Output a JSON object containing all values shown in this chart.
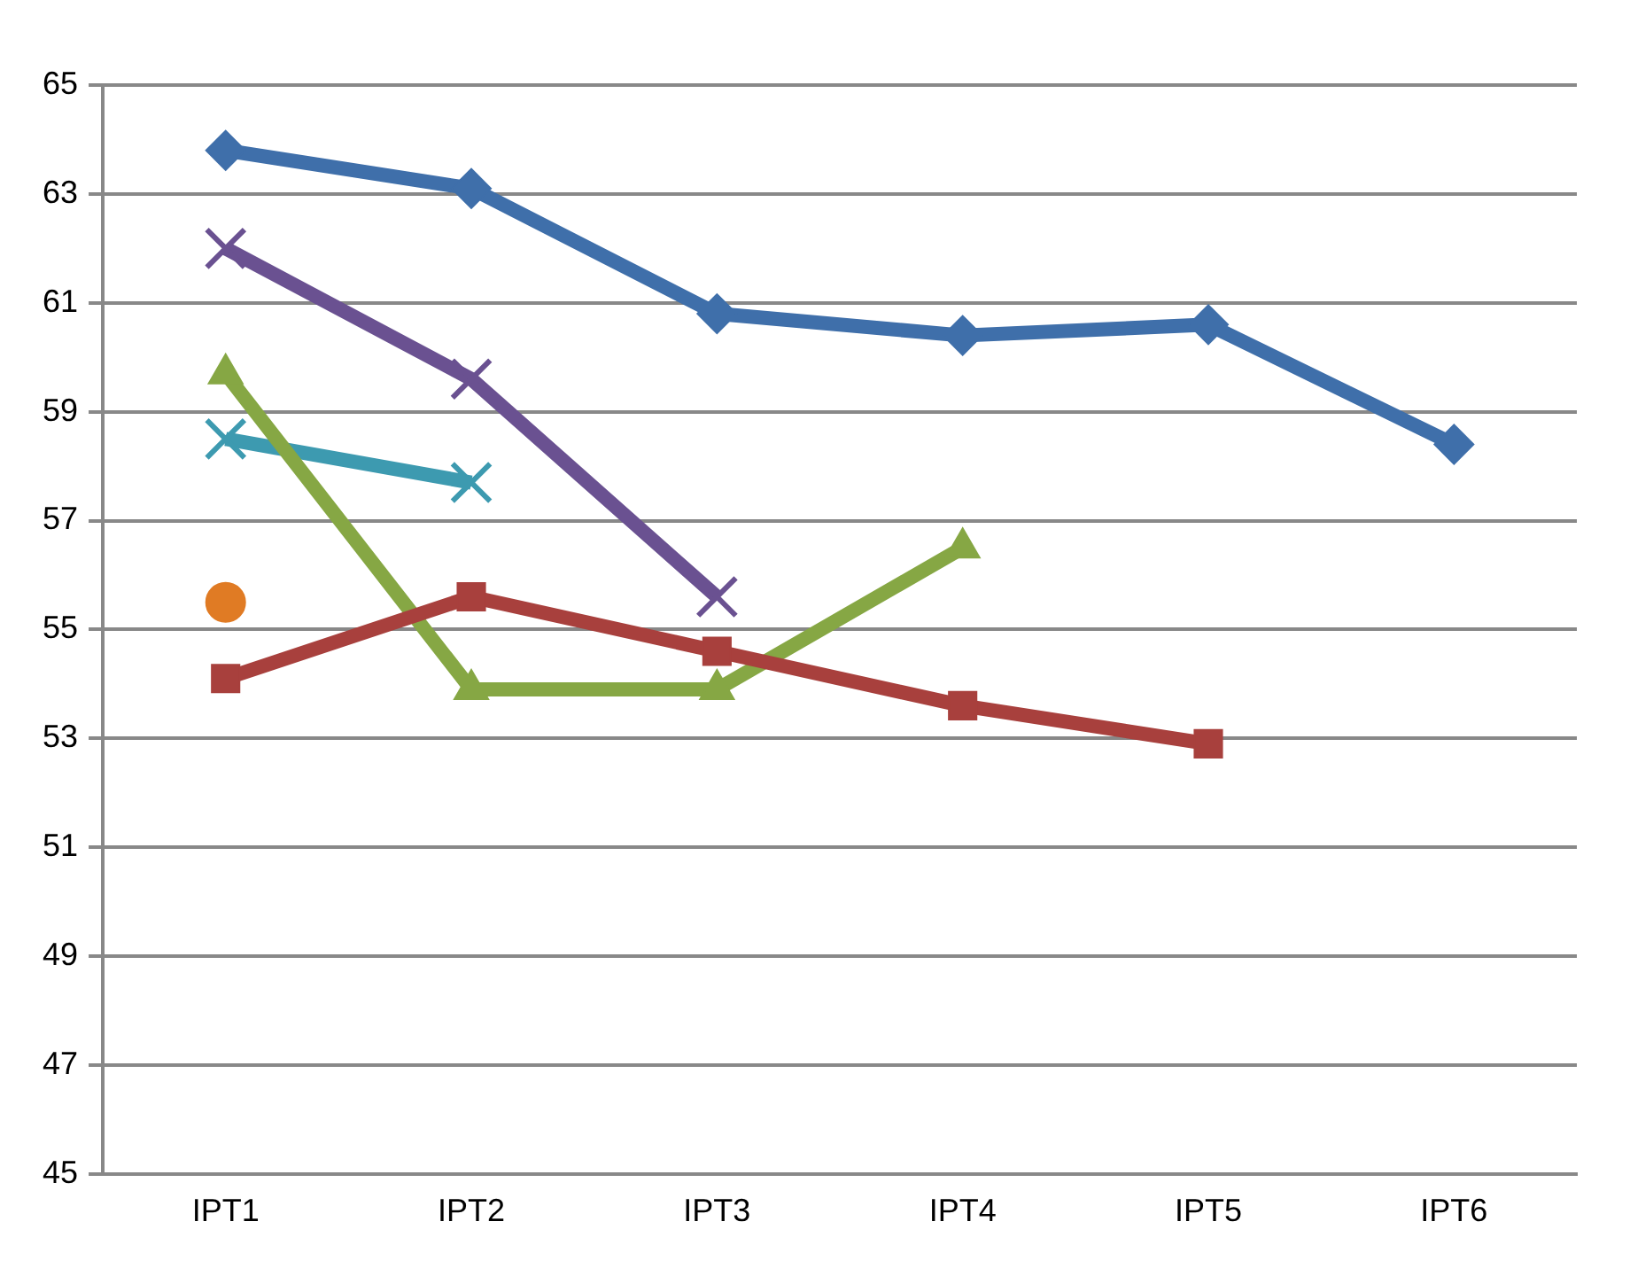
{
  "chart_data": {
    "type": "line",
    "categories": [
      "IPT1",
      "IPT2",
      "IPT3",
      "IPT4",
      "IPT5",
      "IPT6"
    ],
    "ylim": [
      45,
      65
    ],
    "yticks": [
      45,
      47,
      49,
      51,
      53,
      55,
      57,
      59,
      61,
      63,
      65
    ],
    "grid": "y",
    "legend": false,
    "series": [
      {
        "color": "#3f6faa",
        "marker": "diamond",
        "values": [
          63.8,
          63.1,
          60.8,
          60.4,
          60.6,
          58.4
        ]
      },
      {
        "color": "#a8403d",
        "marker": "square",
        "values": [
          54.1,
          55.6,
          54.6,
          53.6,
          52.9,
          null
        ]
      },
      {
        "color": "#86a744",
        "marker": "triangle",
        "values": [
          59.7,
          53.9,
          53.9,
          56.5,
          null,
          null
        ]
      },
      {
        "color": "#6a5191",
        "marker": "cross",
        "values": [
          62.0,
          59.6,
          55.6,
          null,
          null,
          null
        ]
      },
      {
        "color": "#3d9ab0",
        "marker": "cross",
        "values": [
          58.5,
          57.7,
          null,
          null,
          null,
          null
        ]
      },
      {
        "color": "#e07b24",
        "marker": "circle",
        "values": [
          55.5,
          null,
          null,
          null,
          null,
          null
        ]
      }
    ]
  }
}
